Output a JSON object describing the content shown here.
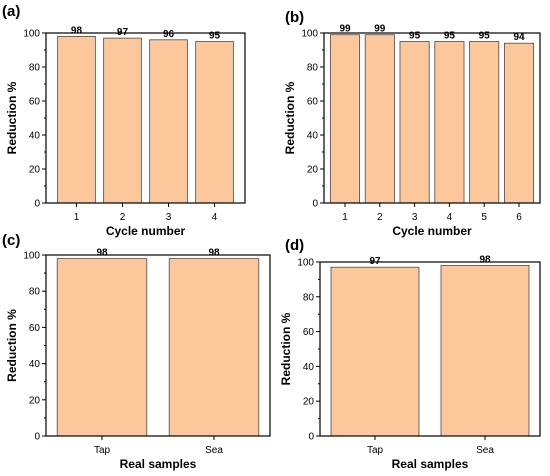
{
  "chart_data": [
    {
      "type": "bar",
      "panel_label": "(a)",
      "categories": [
        "1",
        "2",
        "3",
        "4"
      ],
      "values": [
        98,
        97,
        96,
        95
      ],
      "data_labels": [
        "98",
        "97",
        "96",
        "95"
      ],
      "xlabel": "Cycle number",
      "ylabel": "Reduction %",
      "ylim": [
        0,
        100
      ],
      "yticks": [
        "0",
        "20",
        "40",
        "60",
        "80",
        "100"
      ],
      "grid": false,
      "bar_color": "#fcc89b"
    },
    {
      "type": "bar",
      "panel_label": "(b)",
      "categories": [
        "1",
        "2",
        "3",
        "4",
        "5",
        "6"
      ],
      "values": [
        99,
        99,
        95,
        95,
        95,
        94
      ],
      "data_labels": [
        "99",
        "99",
        "95",
        "95",
        "95",
        "94"
      ],
      "xlabel": "Cycle number",
      "ylabel": "Reduction %",
      "ylim": [
        0,
        100
      ],
      "yticks": [
        "0",
        "20",
        "40",
        "60",
        "80",
        "100"
      ],
      "grid": false,
      "bar_color": "#fcc89b"
    },
    {
      "type": "bar",
      "panel_label": "(c)",
      "categories": [
        "Tap",
        "Sea"
      ],
      "values": [
        98,
        98
      ],
      "data_labels": [
        "98",
        "98"
      ],
      "xlabel": "Real samples",
      "ylabel": "Reduction %",
      "ylim": [
        0,
        100
      ],
      "yticks": [
        "0",
        "20",
        "40",
        "60",
        "80",
        "100"
      ],
      "grid": false,
      "bar_color": "#fcc89b"
    },
    {
      "type": "bar",
      "panel_label": "(d)",
      "categories": [
        "Tap",
        "Sea"
      ],
      "values": [
        97,
        98
      ],
      "data_labels": [
        "97",
        "98"
      ],
      "xlabel": "Real samples",
      "ylabel": "Reduction %",
      "ylim": [
        0,
        100
      ],
      "yticks": [
        "0",
        "20",
        "40",
        "60",
        "80",
        "100"
      ],
      "grid": false,
      "bar_color": "#fcc89b"
    }
  ]
}
